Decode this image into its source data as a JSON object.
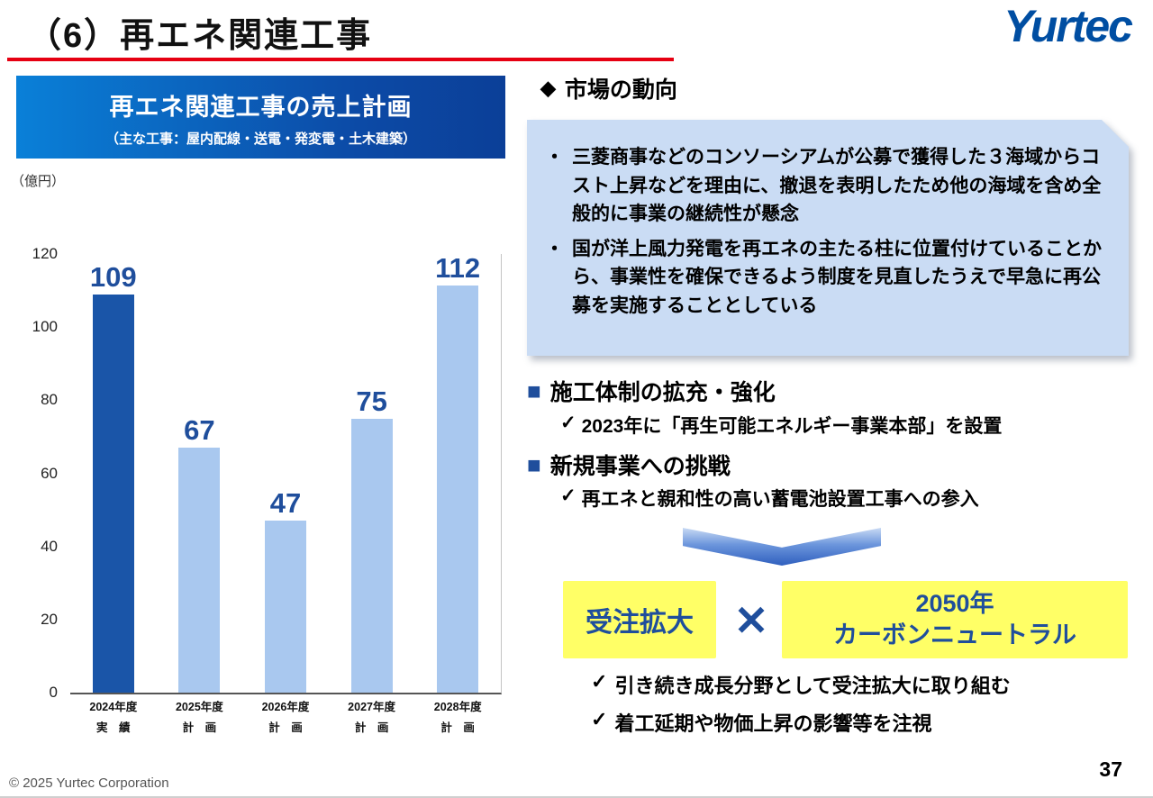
{
  "slide": {
    "title": "（6）再エネ関連工事",
    "logo_text": "Yurtec",
    "footer_copyright": "© 2025 Yurtec Corporation",
    "page_number": "37"
  },
  "icons": {
    "diamond": "◆",
    "square": "■",
    "check": "✓",
    "bullet": "・"
  },
  "colors": {
    "accent_red": "#E60012",
    "brand_blue": "#004EA2",
    "header_gradient_start": "#0A80D8",
    "header_gradient_end": "#0B3F98",
    "callout_bg": "#CADCF4",
    "highlight_yellow": "#FFFF66",
    "text_blue": "#1F4E9C"
  },
  "chart_panel": {
    "title": "再エネ関連工事の売上計画",
    "subtitle": "（主な工事：屋内配線・送電・発変電・土木建築）",
    "unit_label": "（億円）"
  },
  "chart_data": {
    "type": "bar",
    "title": "再エネ関連工事の売上計画",
    "ylabel": "億円",
    "ylim": [
      0,
      120
    ],
    "yticks": [
      0,
      20,
      40,
      60,
      80,
      100,
      120
    ],
    "grid": false,
    "legend": "none",
    "categories": [
      {
        "year": "2024年度",
        "kind": "実　績"
      },
      {
        "year": "2025年度",
        "kind": "計　画"
      },
      {
        "year": "2026年度",
        "kind": "計　画"
      },
      {
        "year": "2027年度",
        "kind": "計　画"
      },
      {
        "year": "2028年度",
        "kind": "計　画"
      }
    ],
    "values": [
      109,
      67,
      47,
      75,
      112
    ],
    "colors": {
      "actual_bar": "#1A55A8",
      "plan_bar": "#A9C8EF",
      "value_label": "#1F4E9C"
    }
  },
  "market": {
    "heading": "市場の動向",
    "bullets": [
      "三菱商事などのコンソーシアムが公募で獲得した３海域からコスト上昇などを理由に、撤退を表明したため他の海域を含め全般的に事業の継続性が懸念",
      "国が洋上風力発電を再エネの主たる柱に位置付けていることから、事業性を確保できるよう制度を見直したうえで早急に再公募を実施することとしている"
    ]
  },
  "initiatives": [
    {
      "heading": "施工体制の拡充・強化",
      "detail": "2023年に「再生可能エネルギー事業本部」を設置"
    },
    {
      "heading": "新規事業への挑戦",
      "detail": "再エネと親和性の高い蓄電池設置工事への参入"
    }
  ],
  "strategy": {
    "left_box": "受注拡大",
    "cross": "✕",
    "right_box_line1": "2050年",
    "right_box_line2": "カーボンニュートラル",
    "notes": [
      "引き続き成長分野として受注拡大に取り組む",
      "着工延期や物価上昇の影響等を注視"
    ]
  }
}
